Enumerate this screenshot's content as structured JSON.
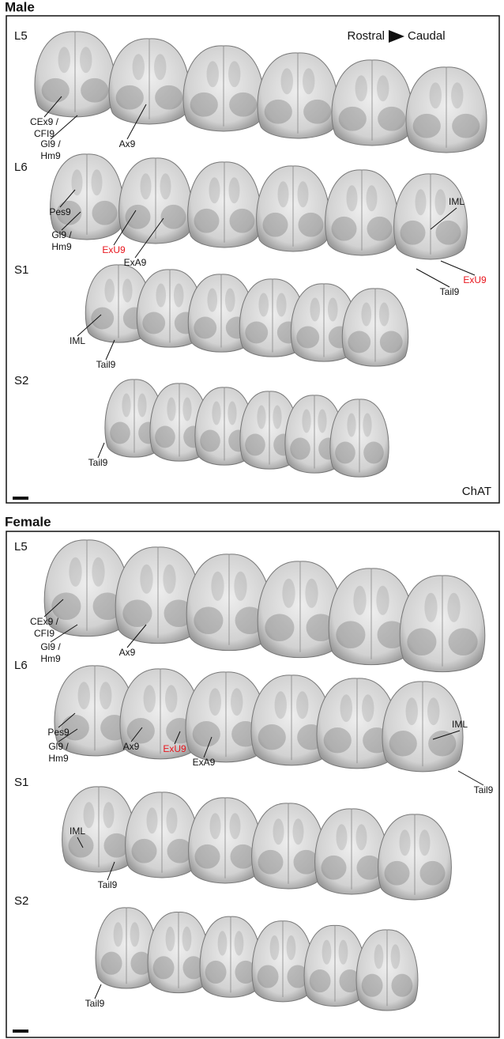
{
  "panels": [
    {
      "title": "Male",
      "direction": {
        "start": "Rostral",
        "end": "Caudal"
      },
      "stain": "ChAT",
      "rows": [
        {
          "label": "L5",
          "annotations": [
            {
              "text": [
                "CEx9 /",
                "CFI9"
              ]
            },
            {
              "text": [
                "Gl9 /",
                "Hm9"
              ]
            },
            {
              "text": [
                "Ax9"
              ]
            }
          ]
        },
        {
          "label": "L6",
          "annotations": [
            {
              "text": [
                "Pes9"
              ]
            },
            {
              "text": [
                "Gl9 /",
                "Hm9"
              ]
            },
            {
              "text": [
                "ExU9"
              ],
              "color": "#e8141c"
            },
            {
              "text": [
                "ExA9"
              ]
            },
            {
              "text": [
                "IML"
              ]
            },
            {
              "text": [
                "ExU9"
              ],
              "color": "#e8141c"
            },
            {
              "text": [
                "Tail9"
              ]
            }
          ]
        },
        {
          "label": "S1",
          "annotations": [
            {
              "text": [
                "IML"
              ]
            },
            {
              "text": [
                "Tail9"
              ]
            }
          ]
        },
        {
          "label": "S2",
          "annotations": [
            {
              "text": [
                "Tail9"
              ]
            }
          ]
        }
      ]
    },
    {
      "title": "Female",
      "rows": [
        {
          "label": "L5",
          "annotations": [
            {
              "text": [
                "CEx9 /",
                "CFI9"
              ]
            },
            {
              "text": [
                "Gl9 /",
                "Hm9"
              ]
            },
            {
              "text": [
                "Ax9"
              ]
            }
          ]
        },
        {
          "label": "L6",
          "annotations": [
            {
              "text": [
                "Pes9"
              ]
            },
            {
              "text": [
                "Gl9 /",
                "Hm9"
              ]
            },
            {
              "text": [
                "Ax9"
              ]
            },
            {
              "text": [
                "ExU9"
              ],
              "color": "#e8141c"
            },
            {
              "text": [
                "ExA9"
              ]
            },
            {
              "text": [
                "IML"
              ]
            },
            {
              "text": [
                "Tail9"
              ]
            }
          ]
        },
        {
          "label": "S1",
          "annotations": [
            {
              "text": [
                "IML"
              ]
            },
            {
              "text": [
                "Tail9"
              ]
            }
          ]
        },
        {
          "label": "S2",
          "annotations": [
            {
              "text": [
                "Tail9"
              ]
            }
          ]
        }
      ]
    }
  ]
}
